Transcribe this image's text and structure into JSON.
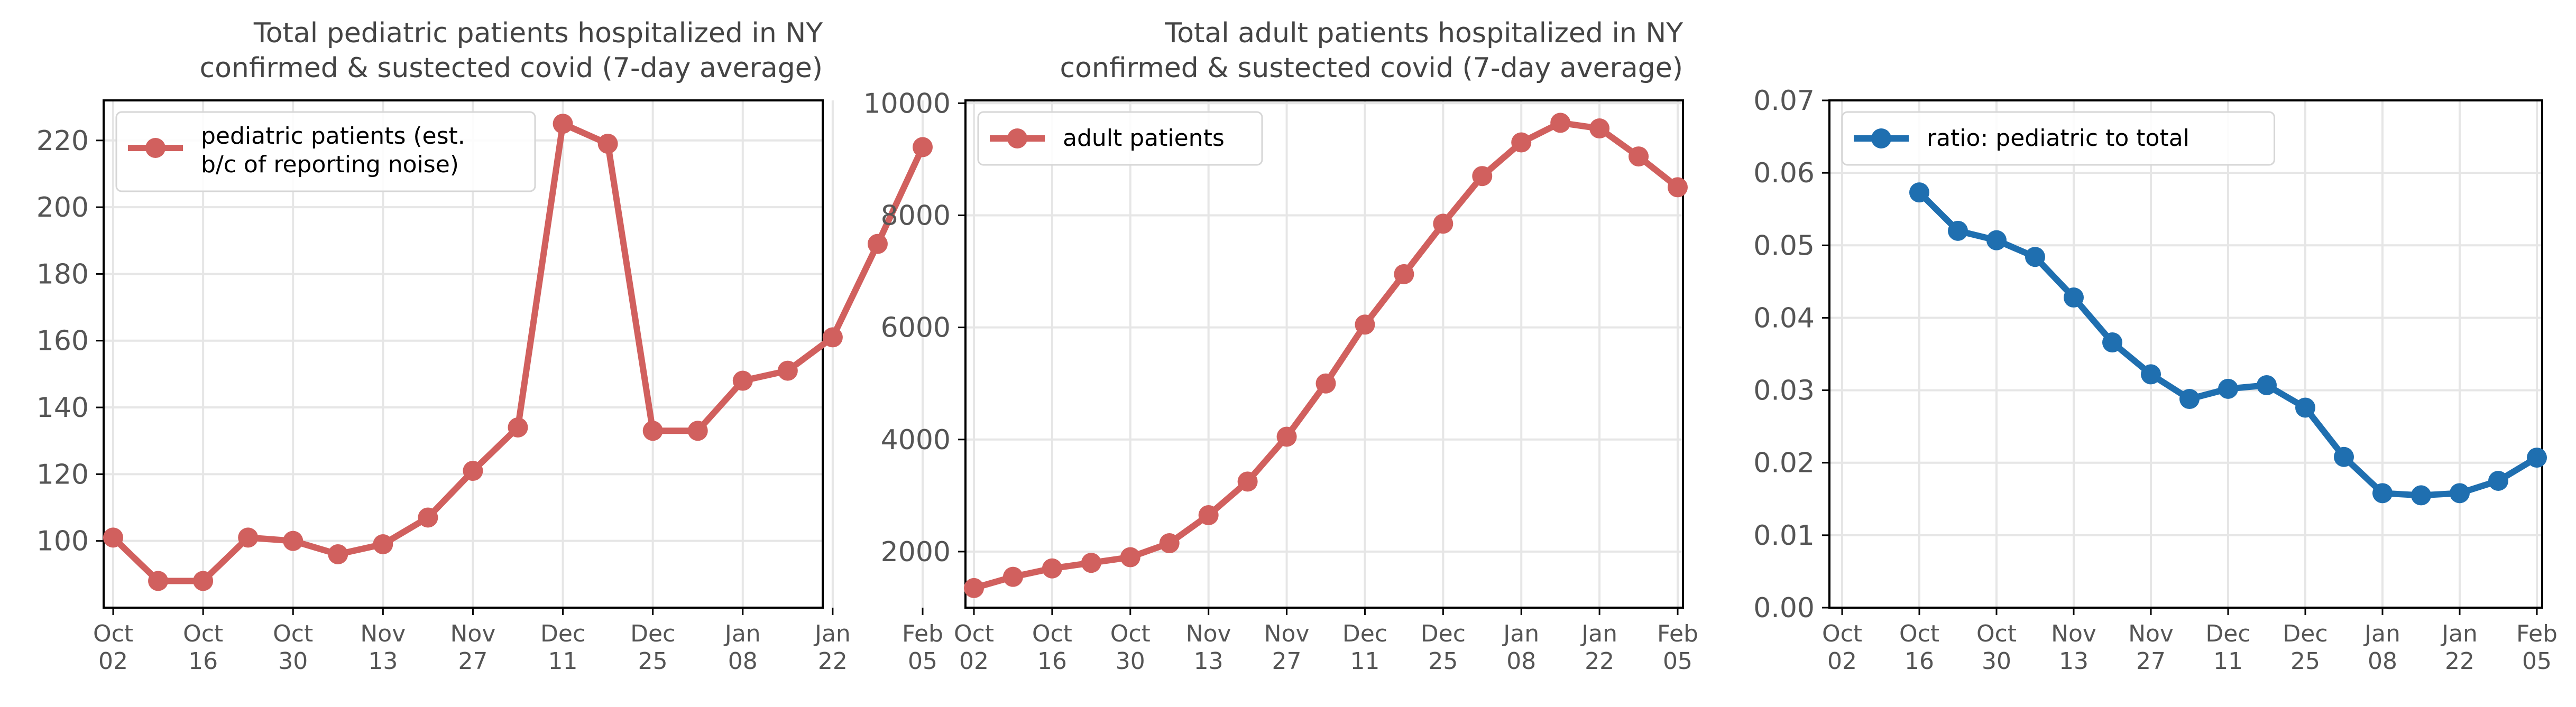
{
  "chart_data": [
    {
      "type": "line",
      "title": [
        "Total pediatric patients hospitalized in NY",
        "confirmed & sustected covid (7-day average)"
      ],
      "x_ticks": [
        "Oct\n02",
        "Oct\n16",
        "Oct\n30",
        "Nov\n13",
        "Nov\n27",
        "Dec\n11",
        "Dec\n25",
        "Jan\n08",
        "Jan\n22",
        "Feb\n05"
      ],
      "xlim": [
        "2021-10-02",
        "2022-02-05"
      ],
      "ylim": [
        80,
        232
      ],
      "y_ticks": [
        100,
        120,
        140,
        160,
        180,
        200,
        220
      ],
      "grid": true,
      "legend_loc": "upper left",
      "series": [
        {
          "name": "pediatric patients (est.\nb/c of reporting noise)",
          "color": "#d1605e",
          "x": [
            "2021-10-02",
            "2021-10-09",
            "2021-10-16",
            "2021-10-23",
            "2021-10-30",
            "2021-11-06",
            "2021-11-13",
            "2021-11-20",
            "2021-11-27",
            "2021-12-04",
            "2021-12-11",
            "2021-12-18",
            "2021-12-25",
            "2022-01-01",
            "2022-01-08",
            "2022-01-15",
            "2022-01-22",
            "2022-01-29",
            "2022-02-05"
          ],
          "values": [
            101,
            88,
            88,
            101,
            100,
            96,
            99,
            107,
            121,
            134,
            225,
            219,
            133,
            133,
            148,
            151,
            161,
            189,
            218
          ]
        }
      ]
    },
    {
      "type": "line",
      "title": [
        "Total adult patients hospitalized in NY",
        "confirmed & sustected covid (7-day average)"
      ],
      "x_ticks": [
        "Oct\n02",
        "Oct\n16",
        "Oct\n30",
        "Nov\n13",
        "Nov\n27",
        "Dec\n11",
        "Dec\n25",
        "Jan\n08",
        "Jan\n22",
        "Feb\n05"
      ],
      "xlim": [
        "2021-10-02",
        "2022-02-05"
      ],
      "ylim": [
        1000,
        10050
      ],
      "y_ticks": [
        2000,
        4000,
        6000,
        8000,
        10000
      ],
      "grid": true,
      "legend_loc": "upper left",
      "series": [
        {
          "name": "adult patients",
          "color": "#d1605e",
          "x": [
            "2021-10-02",
            "2021-10-09",
            "2021-10-16",
            "2021-10-23",
            "2021-10-30",
            "2021-11-06",
            "2021-11-13",
            "2021-11-20",
            "2021-11-27",
            "2021-12-04",
            "2021-12-11",
            "2021-12-18",
            "2021-12-25",
            "2022-01-01",
            "2022-01-08",
            "2022-01-15",
            "2022-01-22",
            "2022-01-29",
            "2022-02-05"
          ],
          "values": [
            1350,
            1550,
            1700,
            1800,
            1900,
            2150,
            2650,
            3250,
            4050,
            5000,
            6050,
            6950,
            7850,
            8700,
            9300,
            9650,
            9550,
            9050,
            8500
          ]
        }
      ]
    },
    {
      "type": "line",
      "title": [],
      "x_ticks": [
        "Oct\n02",
        "Oct\n16",
        "Oct\n30",
        "Nov\n13",
        "Nov\n27",
        "Dec\n11",
        "Dec\n25",
        "Jan\n08",
        "Jan\n22",
        "Feb\n05"
      ],
      "xlim": [
        "2021-10-02",
        "2022-02-05"
      ],
      "ylim": [
        0,
        0.07
      ],
      "y_ticks": [
        "0.00",
        "0.01",
        "0.02",
        "0.03",
        "0.04",
        "0.05",
        "0.06",
        "0.07"
      ],
      "grid": true,
      "legend_loc": "upper left",
      "series": [
        {
          "name": "ratio: pediatric to total",
          "color": "#1f6fb0",
          "x": [
            "2021-10-16",
            "2021-10-23",
            "2021-10-30",
            "2021-11-06",
            "2021-11-13",
            "2021-11-20",
            "2021-11-27",
            "2021-12-04",
            "2021-12-11",
            "2021-12-18",
            "2021-12-25",
            "2022-01-01",
            "2022-01-08",
            "2022-01-15",
            "2022-01-22",
            "2022-01-29",
            "2022-02-05"
          ],
          "values": [
            0.0573,
            0.052,
            0.0507,
            0.0484,
            0.0428,
            0.0366,
            0.0322,
            0.0288,
            0.0302,
            0.0307,
            0.0276,
            0.0208,
            0.0158,
            0.0155,
            0.0158,
            0.0175,
            0.0207
          ]
        }
      ]
    }
  ]
}
